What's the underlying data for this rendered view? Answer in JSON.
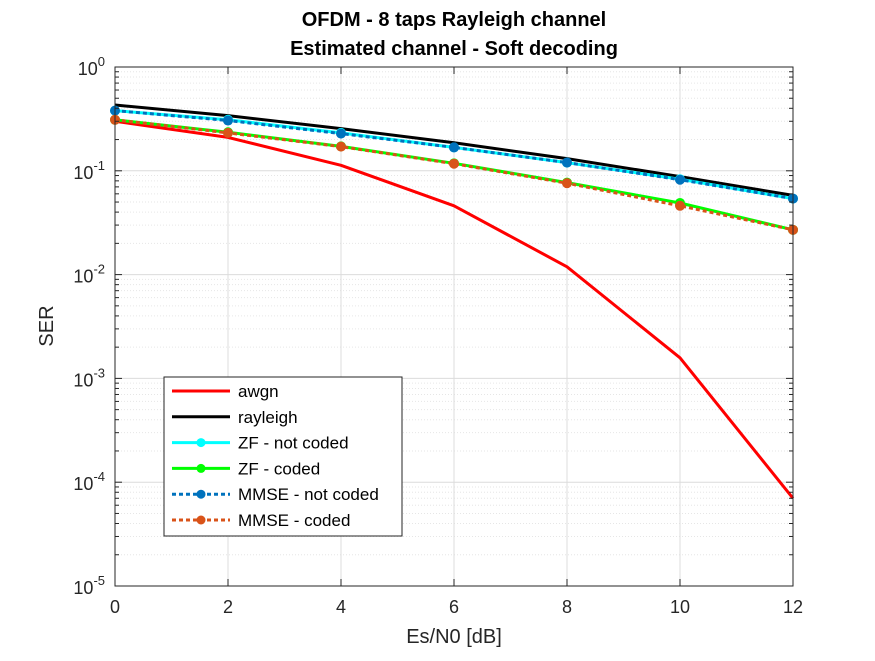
{
  "chart_data": {
    "type": "line",
    "title": [
      "OFDM - 8 taps Rayleigh channel",
      "Estimated channel - Soft decoding"
    ],
    "xlabel": "Es/N0 [dB]",
    "ylabel": "SER",
    "xlim": [
      0,
      12
    ],
    "ylim": [
      1e-05,
      1
    ],
    "yscale": "log",
    "grid": true,
    "minor_grid": true,
    "legend_position": "lower-left",
    "x_ticks": [
      0,
      2,
      4,
      6,
      8,
      10,
      12
    ],
    "y_tick_labels": [
      {
        "base": "10",
        "exp": "0",
        "value": 1
      },
      {
        "base": "10",
        "exp": "-1",
        "value": 0.1
      },
      {
        "base": "10",
        "exp": "-2",
        "value": 0.01
      },
      {
        "base": "10",
        "exp": "-3",
        "value": 0.001
      },
      {
        "base": "10",
        "exp": "-4",
        "value": 0.0001
      },
      {
        "base": "10",
        "exp": "-5",
        "value": 1e-05
      }
    ],
    "x": [
      0,
      2,
      4,
      6,
      8,
      10,
      12
    ],
    "series": [
      {
        "name": "awgn",
        "color": "#ff0000",
        "dash": false,
        "marker": false,
        "values": [
          0.3,
          0.21,
          0.113,
          0.046,
          0.0119,
          0.00158,
          7e-05
        ]
      },
      {
        "name": "rayleigh",
        "color": "#000000",
        "dash": false,
        "marker": false,
        "values": [
          0.43,
          0.34,
          0.255,
          0.186,
          0.131,
          0.088,
          0.058
        ]
      },
      {
        "name": "ZF - not coded",
        "color": "#00ffff",
        "dash": false,
        "marker": true,
        "values": [
          0.38,
          0.31,
          0.232,
          0.168,
          0.12,
          0.083,
          0.054
        ]
      },
      {
        "name": "ZF - coded",
        "color": "#00ff00",
        "dash": false,
        "marker": true,
        "values": [
          0.31,
          0.235,
          0.172,
          0.118,
          0.077,
          0.049,
          0.027
        ]
      },
      {
        "name": "MMSE - not coded",
        "color": "#0072bd",
        "dash": true,
        "marker": true,
        "values": [
          0.38,
          0.305,
          0.228,
          0.168,
          0.12,
          0.082,
          0.054
        ]
      },
      {
        "name": "MMSE - coded",
        "color": "#d95319",
        "dash": true,
        "marker": true,
        "values": [
          0.31,
          0.232,
          0.171,
          0.117,
          0.076,
          0.046,
          0.027
        ]
      }
    ]
  }
}
